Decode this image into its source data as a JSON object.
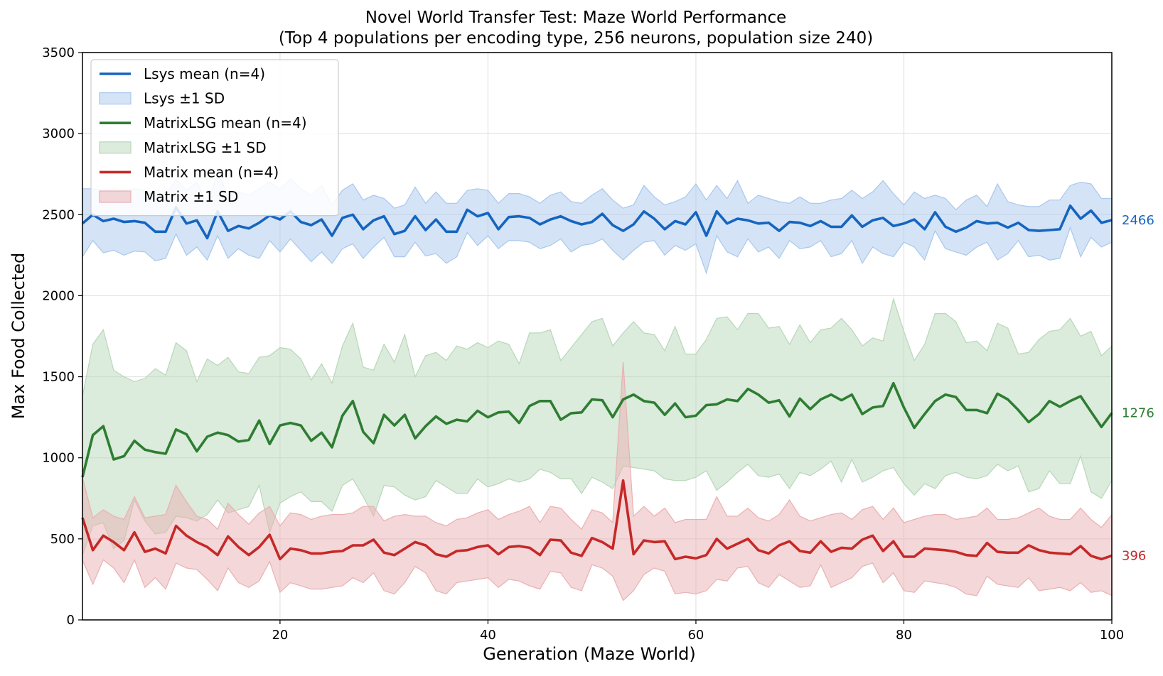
{
  "chart_data": {
    "type": "line",
    "title_line1": "Novel World Transfer Test: Maze World Performance",
    "title_line2": "(Top 4 populations per encoding type, 256 neurons, population size 240)",
    "xlabel": "Generation (Maze World)",
    "ylabel": "Max Food Collected",
    "xlim": [
      1,
      100
    ],
    "ylim": [
      0,
      3500
    ],
    "xticks": [
      20,
      40,
      60,
      80,
      100
    ],
    "yticks": [
      0,
      500,
      1000,
      1500,
      2000,
      2500,
      3000,
      3500
    ],
    "grid": true,
    "legend_position": "top-left",
    "legend": [
      {
        "label": "Lsys mean (n=4)",
        "kind": "line",
        "series": 0
      },
      {
        "label": "Lsys ±1 SD",
        "kind": "band",
        "series": 0
      },
      {
        "label": "MatrixLSG mean (n=4)",
        "kind": "line",
        "series": 1
      },
      {
        "label": "MatrixLSG ±1 SD",
        "kind": "band",
        "series": 1
      },
      {
        "label": "Matrix mean (n=4)",
        "kind": "line",
        "series": 2
      },
      {
        "label": "Matrix ±1 SD",
        "kind": "band",
        "series": 2
      }
    ],
    "series": [
      {
        "name": "Lsys",
        "line_color": "#1565c0",
        "band_color": "#a9c8ec",
        "end_label": "2466",
        "mean": [
          2445,
          2500,
          2460,
          2475,
          2455,
          2460,
          2450,
          2395,
          2395,
          2545,
          2445,
          2465,
          2355,
          2520,
          2400,
          2430,
          2415,
          2450,
          2495,
          2470,
          2520,
          2455,
          2435,
          2470,
          2370,
          2480,
          2500,
          2410,
          2465,
          2490,
          2380,
          2400,
          2490,
          2405,
          2470,
          2395,
          2395,
          2530,
          2490,
          2510,
          2410,
          2485,
          2490,
          2480,
          2440,
          2470,
          2490,
          2460,
          2440,
          2455,
          2505,
          2435,
          2400,
          2440,
          2520,
          2475,
          2410,
          2460,
          2440,
          2515,
          2370,
          2520,
          2445,
          2475,
          2465,
          2445,
          2450,
          2400,
          2455,
          2450,
          2430,
          2460,
          2425,
          2425,
          2495,
          2425,
          2465,
          2480,
          2430,
          2445,
          2470,
          2410,
          2515,
          2425,
          2395,
          2420,
          2460,
          2445,
          2450,
          2420,
          2450,
          2405,
          2400,
          2405,
          2410,
          2555,
          2475,
          2525,
          2450,
          2466
        ],
        "upper": [
          2660,
          2660,
          2650,
          2660,
          2650,
          2660,
          2650,
          2600,
          2620,
          2720,
          2650,
          2700,
          2560,
          2750,
          2620,
          2640,
          2620,
          2660,
          2700,
          2660,
          2720,
          2660,
          2620,
          2680,
          2560,
          2650,
          2690,
          2590,
          2620,
          2600,
          2540,
          2560,
          2670,
          2570,
          2640,
          2570,
          2570,
          2650,
          2660,
          2650,
          2570,
          2630,
          2630,
          2610,
          2570,
          2620,
          2640,
          2580,
          2570,
          2620,
          2660,
          2590,
          2540,
          2560,
          2680,
          2610,
          2560,
          2580,
          2610,
          2690,
          2590,
          2680,
          2600,
          2710,
          2570,
          2620,
          2600,
          2580,
          2570,
          2610,
          2570,
          2570,
          2590,
          2600,
          2650,
          2600,
          2640,
          2710,
          2630,
          2560,
          2640,
          2600,
          2620,
          2600,
          2530,
          2590,
          2620,
          2550,
          2690,
          2580,
          2560,
          2550,
          2550,
          2590,
          2590,
          2680,
          2700,
          2690,
          2600,
          2600
        ],
        "lower": [
          2240,
          2340,
          2265,
          2280,
          2250,
          2275,
          2270,
          2215,
          2230,
          2380,
          2250,
          2300,
          2220,
          2370,
          2230,
          2290,
          2250,
          2230,
          2340,
          2270,
          2350,
          2280,
          2210,
          2270,
          2200,
          2290,
          2320,
          2230,
          2300,
          2360,
          2240,
          2240,
          2330,
          2245,
          2260,
          2200,
          2240,
          2390,
          2310,
          2370,
          2290,
          2340,
          2340,
          2330,
          2290,
          2310,
          2350,
          2270,
          2310,
          2320,
          2350,
          2280,
          2220,
          2280,
          2330,
          2340,
          2250,
          2310,
          2280,
          2320,
          2140,
          2370,
          2270,
          2240,
          2350,
          2270,
          2300,
          2230,
          2340,
          2290,
          2300,
          2340,
          2240,
          2260,
          2340,
          2200,
          2300,
          2260,
          2240,
          2330,
          2300,
          2220,
          2400,
          2290,
          2270,
          2250,
          2300,
          2330,
          2220,
          2260,
          2340,
          2240,
          2250,
          2220,
          2230,
          2420,
          2240,
          2360,
          2300,
          2330
        ]
      },
      {
        "name": "MatrixLSG",
        "line_color": "#2e7d32",
        "band_color": "#b8d7b9",
        "end_label": "1276",
        "mean": [
          880,
          1140,
          1195,
          990,
          1010,
          1105,
          1050,
          1035,
          1025,
          1175,
          1145,
          1040,
          1130,
          1155,
          1140,
          1100,
          1110,
          1230,
          1085,
          1200,
          1215,
          1200,
          1105,
          1155,
          1065,
          1260,
          1350,
          1160,
          1090,
          1265,
          1200,
          1265,
          1120,
          1195,
          1255,
          1210,
          1235,
          1225,
          1290,
          1250,
          1280,
          1285,
          1215,
          1320,
          1350,
          1350,
          1235,
          1275,
          1280,
          1360,
          1355,
          1250,
          1360,
          1390,
          1350,
          1340,
          1265,
          1335,
          1250,
          1260,
          1325,
          1330,
          1360,
          1350,
          1425,
          1390,
          1340,
          1355,
          1255,
          1365,
          1300,
          1360,
          1390,
          1355,
          1390,
          1270,
          1310,
          1320,
          1460,
          1310,
          1185,
          1270,
          1350,
          1390,
          1375,
          1295,
          1295,
          1275,
          1395,
          1360,
          1295,
          1220,
          1270,
          1350,
          1315,
          1350,
          1380,
          1285,
          1190,
          1276
        ],
        "upper": [
          1380,
          1700,
          1790,
          1540,
          1500,
          1470,
          1490,
          1550,
          1510,
          1710,
          1660,
          1470,
          1610,
          1570,
          1620,
          1530,
          1520,
          1620,
          1630,
          1680,
          1670,
          1610,
          1480,
          1580,
          1460,
          1690,
          1830,
          1560,
          1540,
          1700,
          1590,
          1760,
          1500,
          1630,
          1650,
          1600,
          1690,
          1670,
          1710,
          1680,
          1720,
          1700,
          1580,
          1770,
          1770,
          1790,
          1600,
          1680,
          1760,
          1840,
          1860,
          1690,
          1770,
          1840,
          1770,
          1760,
          1660,
          1810,
          1640,
          1640,
          1730,
          1860,
          1870,
          1790,
          1890,
          1890,
          1800,
          1810,
          1700,
          1820,
          1710,
          1790,
          1800,
          1860,
          1790,
          1690,
          1740,
          1720,
          1980,
          1780,
          1600,
          1700,
          1890,
          1890,
          1840,
          1710,
          1720,
          1660,
          1830,
          1800,
          1640,
          1650,
          1730,
          1780,
          1790,
          1860,
          1750,
          1780,
          1630,
          1690
        ],
        "lower": [
          400,
          580,
          600,
          440,
          490,
          740,
          610,
          530,
          540,
          640,
          630,
          610,
          650,
          740,
          660,
          680,
          700,
          830,
          540,
          720,
          760,
          790,
          730,
          730,
          670,
          830,
          870,
          760,
          640,
          830,
          820,
          770,
          740,
          760,
          860,
          820,
          780,
          780,
          870,
          820,
          840,
          870,
          850,
          870,
          930,
          910,
          870,
          870,
          780,
          880,
          850,
          810,
          950,
          940,
          930,
          920,
          870,
          860,
          860,
          880,
          920,
          800,
          850,
          910,
          960,
          890,
          880,
          900,
          810,
          910,
          890,
          930,
          980,
          850,
          990,
          850,
          880,
          920,
          940,
          840,
          770,
          840,
          810,
          890,
          910,
          880,
          870,
          890,
          960,
          920,
          950,
          790,
          810,
          920,
          840,
          840,
          1010,
          790,
          750,
          860
        ]
      },
      {
        "name": "Matrix",
        "line_color": "#c62828",
        "band_color": "#eab0b2",
        "end_label": "396",
        "mean": [
          630,
          430,
          520,
          480,
          430,
          540,
          420,
          440,
          410,
          580,
          520,
          480,
          450,
          400,
          515,
          450,
          400,
          450,
          525,
          375,
          440,
          430,
          410,
          410,
          420,
          425,
          460,
          460,
          495,
          415,
          400,
          440,
          480,
          460,
          405,
          390,
          425,
          430,
          450,
          460,
          405,
          450,
          455,
          445,
          400,
          495,
          490,
          415,
          395,
          505,
          480,
          440,
          860,
          405,
          490,
          480,
          485,
          375,
          390,
          380,
          400,
          500,
          440,
          470,
          500,
          430,
          410,
          460,
          485,
          425,
          415,
          485,
          420,
          445,
          440,
          495,
          520,
          425,
          485,
          390,
          390,
          440,
          435,
          430,
          420,
          400,
          395,
          475,
          420,
          415,
          415,
          460,
          430,
          415,
          410,
          405,
          455,
          395,
          375,
          396
        ],
        "upper": [
          880,
          630,
          680,
          640,
          620,
          760,
          630,
          640,
          650,
          830,
          730,
          640,
          620,
          560,
          720,
          650,
          590,
          660,
          700,
          580,
          660,
          650,
          620,
          640,
          650,
          650,
          660,
          700,
          700,
          610,
          640,
          650,
          640,
          640,
          600,
          580,
          620,
          630,
          660,
          680,
          620,
          650,
          670,
          700,
          600,
          700,
          690,
          620,
          560,
          680,
          660,
          600,
          1590,
          640,
          700,
          640,
          690,
          600,
          620,
          620,
          620,
          760,
          640,
          640,
          690,
          630,
          610,
          650,
          740,
          640,
          610,
          630,
          650,
          660,
          620,
          680,
          700,
          620,
          690,
          600,
          620,
          640,
          650,
          650,
          620,
          630,
          640,
          690,
          620,
          620,
          630,
          660,
          690,
          640,
          620,
          620,
          690,
          620,
          570,
          650
        ],
        "lower": [
          370,
          220,
          370,
          320,
          230,
          370,
          200,
          260,
          190,
          350,
          320,
          310,
          250,
          180,
          320,
          230,
          200,
          240,
          360,
          170,
          230,
          210,
          190,
          190,
          200,
          210,
          260,
          230,
          290,
          180,
          160,
          230,
          330,
          290,
          180,
          160,
          230,
          240,
          250,
          260,
          200,
          250,
          240,
          210,
          190,
          300,
          290,
          200,
          180,
          340,
          320,
          270,
          120,
          180,
          280,
          320,
          300,
          160,
          170,
          160,
          180,
          250,
          240,
          320,
          330,
          230,
          200,
          280,
          240,
          200,
          210,
          340,
          200,
          230,
          260,
          330,
          350,
          230,
          290,
          180,
          170,
          240,
          230,
          220,
          200,
          160,
          150,
          270,
          220,
          210,
          200,
          260,
          180,
          190,
          200,
          180,
          230,
          170,
          180,
          150
        ]
      }
    ]
  }
}
